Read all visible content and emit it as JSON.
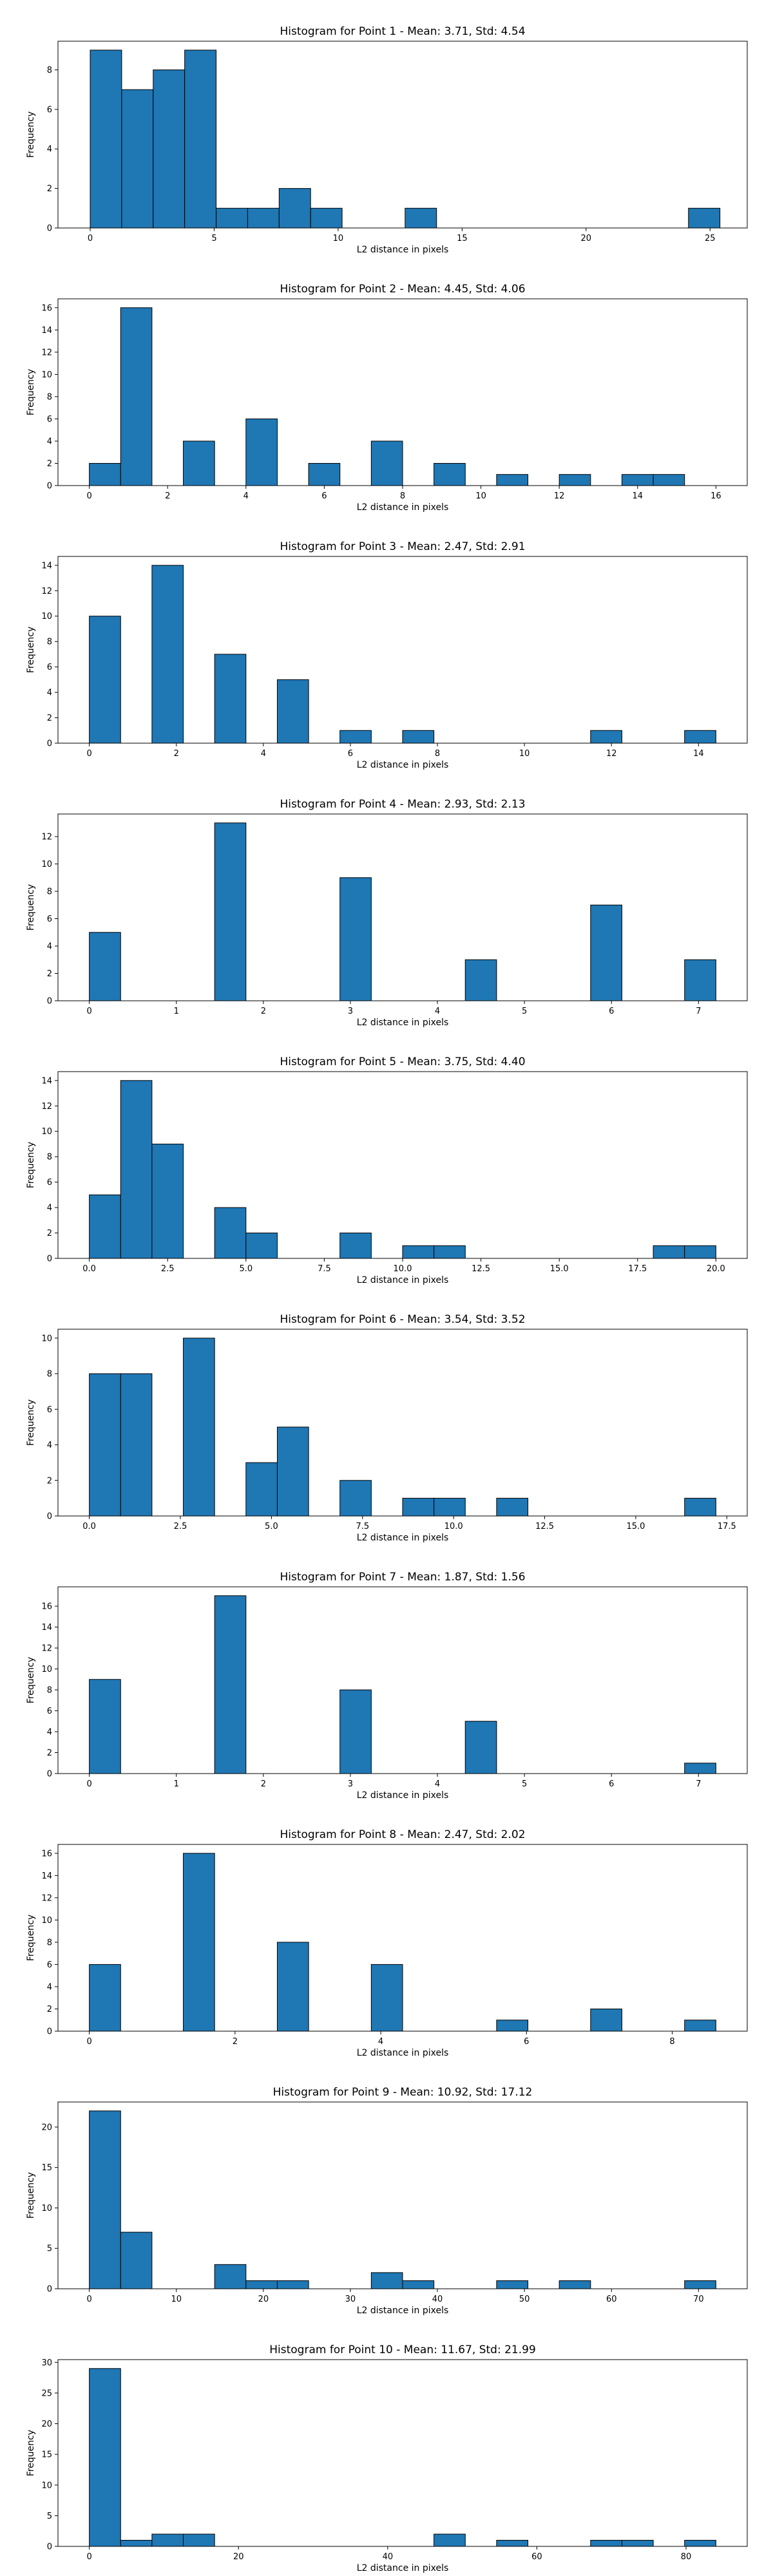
{
  "figure": {
    "background": "#ffffff",
    "bar_color": "#1f77b4",
    "edge_color": "#000000"
  },
  "chart_data": [
    {
      "type": "bar",
      "title": "Histogram for Point 1 - Mean: 3.71, Std: 4.54",
      "xlabel": "L2 distance in pixels",
      "ylabel": "Frequency",
      "xlim": [
        -1.3,
        26.5
      ],
      "ylim": [
        0,
        9.45
      ],
      "xticks": [
        0,
        5,
        10,
        15,
        20,
        25
      ],
      "yticks": [
        0,
        2,
        4,
        6,
        8
      ],
      "bins": [
        {
          "x0": 0.0,
          "x1": 1.27,
          "count": 9
        },
        {
          "x0": 1.27,
          "x1": 2.54,
          "count": 7
        },
        {
          "x0": 2.54,
          "x1": 3.81,
          "count": 8
        },
        {
          "x0": 3.81,
          "x1": 5.08,
          "count": 9
        },
        {
          "x0": 5.08,
          "x1": 6.35,
          "count": 1
        },
        {
          "x0": 6.35,
          "x1": 7.62,
          "count": 1
        },
        {
          "x0": 7.62,
          "x1": 8.89,
          "count": 2
        },
        {
          "x0": 8.89,
          "x1": 10.16,
          "count": 1
        },
        {
          "x0": 12.7,
          "x1": 13.97,
          "count": 1
        },
        {
          "x0": 24.13,
          "x1": 25.4,
          "count": 1
        }
      ]
    },
    {
      "type": "bar",
      "title": "Histogram for Point 2 - Mean: 4.45, Std: 4.06",
      "xlabel": "L2 distance in pixels",
      "ylabel": "Frequency",
      "xlim": [
        -0.8,
        16.8
      ],
      "ylim": [
        0,
        16.8
      ],
      "xticks": [
        0,
        2,
        4,
        6,
        8,
        10,
        12,
        14,
        16
      ],
      "yticks": [
        0,
        2,
        4,
        6,
        8,
        10,
        12,
        14,
        16
      ],
      "bins": [
        {
          "x0": 0.0,
          "x1": 0.8,
          "count": 2
        },
        {
          "x0": 0.8,
          "x1": 1.6,
          "count": 16
        },
        {
          "x0": 2.4,
          "x1": 3.2,
          "count": 4
        },
        {
          "x0": 4.0,
          "x1": 4.8,
          "count": 6
        },
        {
          "x0": 5.6,
          "x1": 6.4,
          "count": 2
        },
        {
          "x0": 7.2,
          "x1": 8.0,
          "count": 4
        },
        {
          "x0": 8.8,
          "x1": 9.6,
          "count": 2
        },
        {
          "x0": 10.4,
          "x1": 11.2,
          "count": 1
        },
        {
          "x0": 12.0,
          "x1": 12.8,
          "count": 1
        },
        {
          "x0": 13.6,
          "x1": 14.4,
          "count": 1
        },
        {
          "x0": 14.4,
          "x1": 15.2,
          "count": 1
        }
      ]
    },
    {
      "type": "bar",
      "title": "Histogram for Point 3 - Mean: 2.47, Std: 2.91",
      "xlabel": "L2 distance in pixels",
      "ylabel": "Frequency",
      "xlim": [
        -0.72,
        15.12
      ],
      "ylim": [
        0,
        14.7
      ],
      "xticks": [
        0,
        2,
        4,
        6,
        8,
        10,
        12,
        14
      ],
      "yticks": [
        0,
        2,
        4,
        6,
        8,
        10,
        12,
        14
      ],
      "bins": [
        {
          "x0": 0.0,
          "x1": 0.72,
          "count": 10
        },
        {
          "x0": 1.44,
          "x1": 2.16,
          "count": 14
        },
        {
          "x0": 2.88,
          "x1": 3.6,
          "count": 7
        },
        {
          "x0": 4.32,
          "x1": 5.04,
          "count": 5
        },
        {
          "x0": 5.76,
          "x1": 6.48,
          "count": 1
        },
        {
          "x0": 7.2,
          "x1": 7.92,
          "count": 1
        },
        {
          "x0": 11.52,
          "x1": 12.24,
          "count": 1
        },
        {
          "x0": 13.68,
          "x1": 14.4,
          "count": 1
        }
      ]
    },
    {
      "type": "bar",
      "title": "Histogram for Point 4 - Mean: 2.93, Std: 2.13",
      "xlabel": "L2 distance in pixels",
      "ylabel": "Frequency",
      "xlim": [
        -0.36,
        7.56
      ],
      "ylim": [
        0,
        13.65
      ],
      "xticks": [
        0,
        1,
        2,
        3,
        4,
        5,
        6,
        7
      ],
      "yticks": [
        0,
        2,
        4,
        6,
        8,
        10,
        12
      ],
      "bins": [
        {
          "x0": 0.0,
          "x1": 0.36,
          "count": 5
        },
        {
          "x0": 1.44,
          "x1": 1.8,
          "count": 13
        },
        {
          "x0": 2.88,
          "x1": 3.24,
          "count": 9
        },
        {
          "x0": 4.32,
          "x1": 4.68,
          "count": 3
        },
        {
          "x0": 5.76,
          "x1": 6.12,
          "count": 7
        },
        {
          "x0": 6.84,
          "x1": 7.2,
          "count": 3
        }
      ]
    },
    {
      "type": "bar",
      "title": "Histogram for Point 5 - Mean: 3.75, Std: 4.40",
      "xlabel": "L2 distance in pixels",
      "ylabel": "Frequency",
      "xlim": [
        -1.0,
        21.0
      ],
      "ylim": [
        0,
        14.7
      ],
      "xticks": [
        0.0,
        2.5,
        5.0,
        7.5,
        10.0,
        12.5,
        15.0,
        17.5,
        20.0
      ],
      "xtick_labels": [
        "0.0",
        "2.5",
        "5.0",
        "7.5",
        "10.0",
        "12.5",
        "15.0",
        "17.5",
        "20.0"
      ],
      "yticks": [
        0,
        2,
        4,
        6,
        8,
        10,
        12,
        14
      ],
      "bins": [
        {
          "x0": 0.0,
          "x1": 1.0,
          "count": 5
        },
        {
          "x0": 1.0,
          "x1": 2.0,
          "count": 14
        },
        {
          "x0": 2.0,
          "x1": 3.0,
          "count": 9
        },
        {
          "x0": 4.0,
          "x1": 5.0,
          "count": 4
        },
        {
          "x0": 5.0,
          "x1": 6.0,
          "count": 2
        },
        {
          "x0": 8.0,
          "x1": 9.0,
          "count": 2
        },
        {
          "x0": 10.0,
          "x1": 11.0,
          "count": 1
        },
        {
          "x0": 11.0,
          "x1": 12.0,
          "count": 1
        },
        {
          "x0": 18.0,
          "x1": 19.0,
          "count": 1
        },
        {
          "x0": 19.0,
          "x1": 20.0,
          "count": 1
        }
      ]
    },
    {
      "type": "bar",
      "title": "Histogram for Point 6 - Mean: 3.54, Std: 3.52",
      "xlabel": "L2 distance in pixels",
      "ylabel": "Frequency",
      "xlim": [
        -0.86,
        18.06
      ],
      "ylim": [
        0,
        10.5
      ],
      "xticks": [
        0.0,
        2.5,
        5.0,
        7.5,
        10.0,
        12.5,
        15.0,
        17.5
      ],
      "xtick_labels": [
        "0.0",
        "2.5",
        "5.0",
        "7.5",
        "10.0",
        "12.5",
        "15.0",
        "17.5"
      ],
      "yticks": [
        0,
        2,
        4,
        6,
        8,
        10
      ],
      "bins": [
        {
          "x0": 0.0,
          "x1": 0.86,
          "count": 8
        },
        {
          "x0": 0.86,
          "x1": 1.72,
          "count": 8
        },
        {
          "x0": 2.58,
          "x1": 3.44,
          "count": 10
        },
        {
          "x0": 4.3,
          "x1": 5.16,
          "count": 3
        },
        {
          "x0": 5.16,
          "x1": 6.02,
          "count": 5
        },
        {
          "x0": 6.88,
          "x1": 7.74,
          "count": 2
        },
        {
          "x0": 8.6,
          "x1": 9.46,
          "count": 1
        },
        {
          "x0": 9.46,
          "x1": 10.32,
          "count": 1
        },
        {
          "x0": 11.18,
          "x1": 12.04,
          "count": 1
        },
        {
          "x0": 16.34,
          "x1": 17.2,
          "count": 1
        }
      ]
    },
    {
      "type": "bar",
      "title": "Histogram for Point 7 - Mean: 1.87, Std: 1.56",
      "xlabel": "L2 distance in pixels",
      "ylabel": "Frequency",
      "xlim": [
        -0.36,
        7.56
      ],
      "ylim": [
        0,
        17.85
      ],
      "xticks": [
        0,
        1,
        2,
        3,
        4,
        5,
        6,
        7
      ],
      "yticks": [
        0,
        2,
        4,
        6,
        8,
        10,
        12,
        14,
        16
      ],
      "bins": [
        {
          "x0": 0.0,
          "x1": 0.36,
          "count": 9
        },
        {
          "x0": 1.44,
          "x1": 1.8,
          "count": 17
        },
        {
          "x0": 2.88,
          "x1": 3.24,
          "count": 8
        },
        {
          "x0": 4.32,
          "x1": 4.68,
          "count": 5
        },
        {
          "x0": 6.84,
          "x1": 7.2,
          "count": 1
        }
      ]
    },
    {
      "type": "bar",
      "title": "Histogram for Point 8 - Mean: 2.47, Std: 2.02",
      "xlabel": "L2 distance in pixels",
      "ylabel": "Frequency",
      "xlim": [
        -0.43,
        9.03
      ],
      "ylim": [
        0,
        16.8
      ],
      "xticks": [
        0,
        2,
        4,
        6,
        8
      ],
      "yticks": [
        0,
        2,
        4,
        6,
        8,
        10,
        12,
        14,
        16
      ],
      "bins": [
        {
          "x0": 0.0,
          "x1": 0.43,
          "count": 6
        },
        {
          "x0": 1.29,
          "x1": 1.72,
          "count": 16
        },
        {
          "x0": 2.58,
          "x1": 3.01,
          "count": 8
        },
        {
          "x0": 3.87,
          "x1": 4.3,
          "count": 6
        },
        {
          "x0": 5.59,
          "x1": 6.02,
          "count": 1
        },
        {
          "x0": 6.88,
          "x1": 7.31,
          "count": 2
        },
        {
          "x0": 8.17,
          "x1": 8.6,
          "count": 1
        }
      ]
    },
    {
      "type": "bar",
      "title": "Histogram for Point 9 - Mean: 10.92, Std: 17.12",
      "xlabel": "L2 distance in pixels",
      "ylabel": "Frequency",
      "xlim": [
        -3.6,
        75.6
      ],
      "ylim": [
        0,
        23.1
      ],
      "xticks": [
        0,
        10,
        20,
        30,
        40,
        50,
        60,
        70
      ],
      "yticks": [
        0,
        5,
        10,
        15,
        20
      ],
      "bins": [
        {
          "x0": 0.0,
          "x1": 3.6,
          "count": 22
        },
        {
          "x0": 3.6,
          "x1": 7.2,
          "count": 7
        },
        {
          "x0": 14.4,
          "x1": 18.0,
          "count": 3
        },
        {
          "x0": 18.0,
          "x1": 21.6,
          "count": 1
        },
        {
          "x0": 21.6,
          "x1": 25.2,
          "count": 1
        },
        {
          "x0": 32.4,
          "x1": 36.0,
          "count": 2
        },
        {
          "x0": 36.0,
          "x1": 39.6,
          "count": 1
        },
        {
          "x0": 46.8,
          "x1": 50.4,
          "count": 1
        },
        {
          "x0": 54.0,
          "x1": 57.6,
          "count": 1
        },
        {
          "x0": 68.4,
          "x1": 72.0,
          "count": 1
        }
      ]
    },
    {
      "type": "bar",
      "title": "Histogram for Point 10 - Mean: 11.67, Std: 21.99",
      "xlabel": "L2 distance in pixels",
      "ylabel": "Frequency",
      "xlim": [
        -4.2,
        88.2
      ],
      "ylim": [
        0,
        30.45
      ],
      "xticks": [
        0,
        20,
        40,
        60,
        80
      ],
      "yticks": [
        0,
        5,
        10,
        15,
        20,
        25,
        30
      ],
      "bins": [
        {
          "x0": 0.0,
          "x1": 4.2,
          "count": 29
        },
        {
          "x0": 4.2,
          "x1": 8.4,
          "count": 1
        },
        {
          "x0": 8.4,
          "x1": 12.6,
          "count": 2
        },
        {
          "x0": 12.6,
          "x1": 16.8,
          "count": 2
        },
        {
          "x0": 46.2,
          "x1": 50.4,
          "count": 2
        },
        {
          "x0": 54.6,
          "x1": 58.8,
          "count": 1
        },
        {
          "x0": 67.2,
          "x1": 71.4,
          "count": 1
        },
        {
          "x0": 71.4,
          "x1": 75.6,
          "count": 1
        },
        {
          "x0": 79.8,
          "x1": 84.0,
          "count": 1
        }
      ]
    }
  ]
}
